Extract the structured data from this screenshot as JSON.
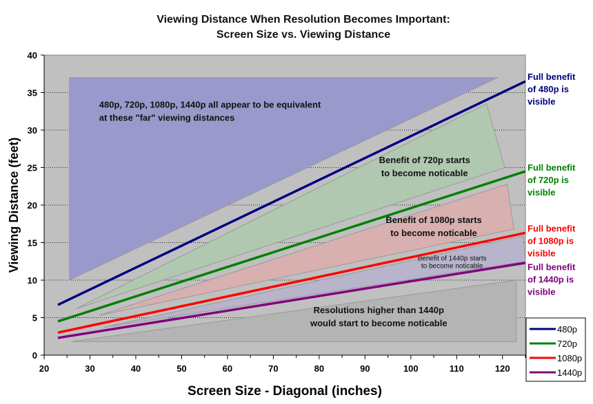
{
  "chart_data": {
    "type": "line",
    "title": [
      "Viewing Distance When Resolution Becomes Important:",
      "Screen Size vs. Viewing Distance"
    ],
    "xlabel": "Screen Size - Diagonal (inches)",
    "ylabel": "Viewing Distance (feet)",
    "xlim": [
      20,
      125
    ],
    "ylim": [
      0,
      40
    ],
    "xticks": [
      20,
      30,
      40,
      50,
      60,
      70,
      80,
      90,
      100,
      110,
      120
    ],
    "yticks": [
      0,
      5,
      10,
      15,
      20,
      25,
      30,
      35,
      40
    ],
    "grid": "horizontal dotted",
    "legend_position": "bottom-right",
    "series": [
      {
        "name": "480p",
        "color": "#000080",
        "x": [
          23,
          125
        ],
        "y": [
          6.7,
          36.5
        ]
      },
      {
        "name": "720p",
        "color": "#008000",
        "x": [
          23,
          125
        ],
        "y": [
          4.5,
          24.5
        ]
      },
      {
        "name": "1080p",
        "color": "#ff0000",
        "x": [
          23,
          125
        ],
        "y": [
          3.0,
          16.3
        ]
      },
      {
        "name": "1440p",
        "color": "#800080",
        "x": [
          23,
          125
        ],
        "y": [
          2.3,
          12.3
        ]
      }
    ],
    "regions": [
      {
        "name": "all-equivalent",
        "color": "#9999cc",
        "points": [
          [
            25.5,
            37
          ],
          [
            119,
            37
          ],
          [
            25.5,
            10
          ]
        ],
        "label": [
          "480p, 720p, 1080p, 1440p all appear to be equivalent",
          "at these \"far\" viewing distances"
        ],
        "label_at": [
          32,
          33
        ]
      },
      {
        "name": "720p-benefit",
        "color": "#b0c8b0",
        "points": [
          [
            27,
            6.2
          ],
          [
            116.5,
            33.5
          ],
          [
            120.5,
            25
          ]
        ],
        "label": [
          "Benefit of 720p starts",
          "to become noticable"
        ],
        "label_at": [
          103,
          25.6
        ]
      },
      {
        "name": "1080p-benefit",
        "color": "#d8b0b0",
        "points": [
          [
            32,
            5.3
          ],
          [
            121,
            22.8
          ],
          [
            122.5,
            16.8
          ]
        ],
        "label": [
          "Benefit of 1080p starts",
          "to become noticable"
        ],
        "label_at": [
          105,
          17.6
        ]
      },
      {
        "name": "1440p-benefit",
        "color": "#b8b4cc",
        "points": [
          [
            33,
            3.7
          ],
          [
            124.5,
            15.9
          ],
          [
            125,
            12.5
          ]
        ],
        "label": [
          "Benefit of 1440p starts",
          "to become noticable"
        ],
        "label_at": [
          109,
          12.6
        ],
        "small": true
      },
      {
        "name": "higher-than-1440p",
        "color": "#b4b4b4",
        "points": [
          [
            26,
            1.8
          ],
          [
            123,
            10
          ],
          [
            123,
            1.8
          ]
        ],
        "label": [
          "Resolutions higher than 1440p",
          "would start to become noticable"
        ],
        "label_at": [
          93,
          5.6
        ]
      }
    ],
    "annotations": [
      {
        "text": [
          "Full benefit",
          "of 480p is",
          "visible"
        ],
        "color": "#000080",
        "y": 36.5
      },
      {
        "text": [
          "Full benefit",
          "of 720p is",
          "visible"
        ],
        "color": "#008000",
        "y": 24.4
      },
      {
        "text": [
          "Full benefit",
          "of 1080p is",
          "visible"
        ],
        "color": "#ff0000",
        "y": 16.3
      },
      {
        "text": [
          "Full benefit",
          "of 1440p is",
          "visible"
        ],
        "color": "#800080",
        "y": 12.3
      }
    ]
  }
}
